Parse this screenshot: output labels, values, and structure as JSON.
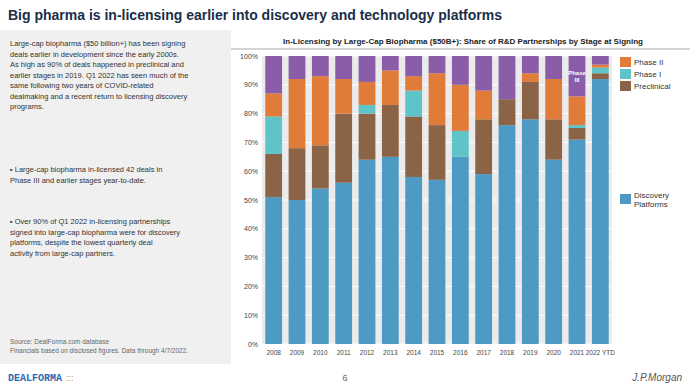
{
  "heading": "Big pharma is in-licensing earlier into discovery and technology platforms",
  "panel": {
    "paragraph": "Large-cap biopharma ($50 billion+) has been signing\ndeals earlier in development since the early 2000s.\nAs high as 90% of deals happened in preclinical and\nearlier stages in 2019. Q1 2022 has seen much of the\nsame following two years of COVID-related\ndealmaking and a recent return to licensing discovery\nprograms.",
    "bullets": [
      "▪ Large-cap biopharma in-licensed 42 deals in\nPhase III and earlier stages year-to-date.",
      "▪ Over 90% of Q1 2022 in-licensing partnerships\nsigned into large-cap biopharma were for discovery\nplatforms, despite the lowest quarterly deal\nactivity from large-cap partners."
    ],
    "source": "Source: DealForma.com database\nFinancials based on disclosed figures. Data through 4/7/2022."
  },
  "footer": {
    "page": "6",
    "logo": "DEALFORMA",
    "logo_mark": ":::",
    "brand": "J.P.Morgan"
  },
  "chart_data": {
    "type": "bar",
    "stacked": true,
    "grid": true,
    "legend": "right",
    "title": "In-Licensing by Large-Cap Biopharma ($50B+): Share of R&D Partnerships by Stage at Signing",
    "categories": [
      "2008",
      "2009",
      "2010",
      "2011",
      "2012",
      "2013",
      "2014",
      "2015",
      "2016",
      "2017",
      "2018",
      "2019",
      "2020",
      "2021",
      "2022 YTD"
    ],
    "series": [
      {
        "name": "Discovery Platforms",
        "color": "#4d9bc4",
        "values": [
          51,
          50,
          54,
          56,
          64,
          65,
          58,
          57,
          65,
          59,
          76,
          78,
          64,
          71,
          92
        ]
      },
      {
        "name": "Preclinical",
        "color": "#8b6347",
        "values": [
          15,
          18,
          15,
          24,
          16,
          18,
          21,
          19,
          0,
          19,
          9,
          13,
          14,
          4,
          2
        ]
      },
      {
        "name": "Phase I",
        "color": "#5fc4c8",
        "values": [
          13,
          0,
          0,
          0,
          3,
          0,
          9,
          0,
          9,
          0,
          0,
          0,
          0,
          1,
          2
        ]
      },
      {
        "name": "Phase II",
        "color": "#e07b39",
        "values": [
          8,
          24,
          24,
          12,
          8,
          12,
          5,
          18,
          16,
          10,
          0,
          3,
          14,
          10,
          1
        ]
      },
      {
        "name": "Phase III",
        "color": "#8b5ca8",
        "values": [
          13,
          8,
          7,
          8,
          9,
          5,
          7,
          6,
          10,
          12,
          15,
          6,
          8,
          14,
          3
        ]
      }
    ],
    "annotations": [
      {
        "text": "Phase III",
        "category": "2021",
        "series": "Phase III"
      }
    ],
    "ylim": [
      0,
      100
    ],
    "yticks": [
      {
        "value": 0,
        "label": "0%"
      },
      {
        "value": 10,
        "label": "10%"
      },
      {
        "value": 20,
        "label": "20%"
      },
      {
        "value": 30,
        "label": "30%"
      },
      {
        "value": 40,
        "label": "40%"
      },
      {
        "value": 50,
        "label": "50%"
      },
      {
        "value": 60,
        "label": "60%"
      },
      {
        "value": 70,
        "label": "70%"
      },
      {
        "value": 80,
        "label": "80%"
      },
      {
        "value": 90,
        "label": "90%"
      },
      {
        "value": 100,
        "label": "100%"
      }
    ]
  }
}
